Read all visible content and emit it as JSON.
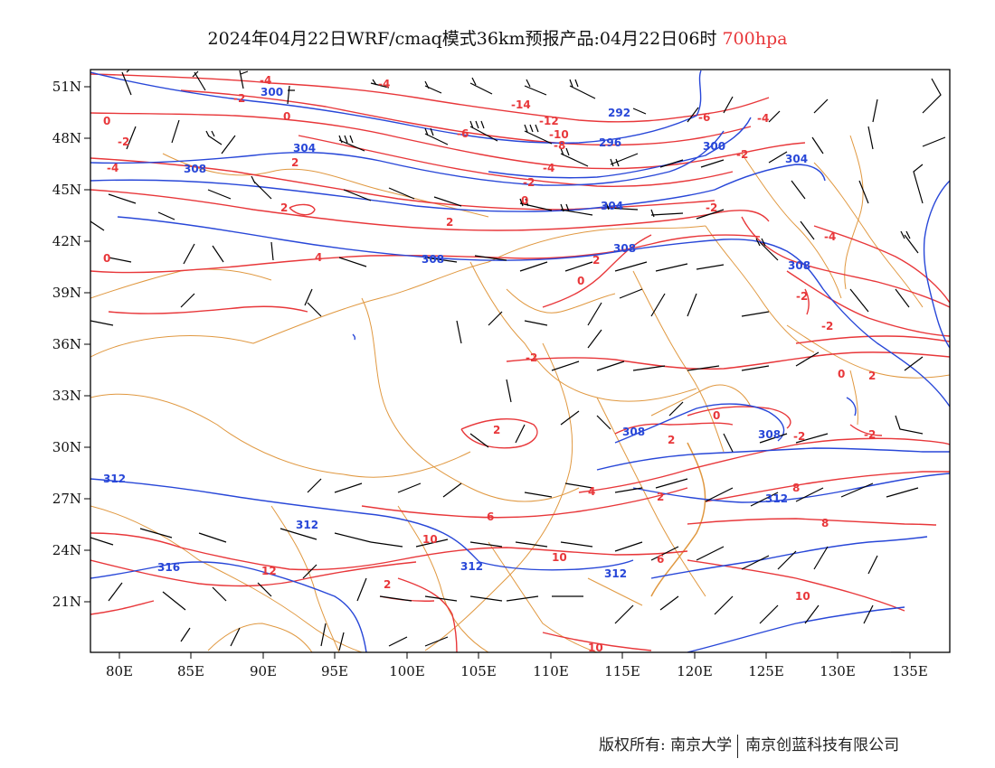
{
  "title": {
    "main": "2024年04月22日WRF/cmaq模式36km预报产品:04月22日06时",
    "level": "700hpa"
  },
  "axes": {
    "lon_labels": [
      "80E",
      "85E",
      "90E",
      "95E",
      "100E",
      "105E",
      "110E",
      "115E",
      "120E",
      "125E",
      "130E",
      "135E"
    ],
    "lat_labels": [
      "21N",
      "24N",
      "27N",
      "30N",
      "33N",
      "36N",
      "39N",
      "42N",
      "45N",
      "48N",
      "51N"
    ]
  },
  "colors": {
    "temperature": "#e8373a",
    "geopotential": "#2847d8",
    "boundary": "#e09840",
    "wind_barb": "#000000"
  },
  "temperature_labels": [
    "-4",
    "-4",
    "-2",
    "-14",
    "-12",
    "-10",
    "-8",
    "-6",
    "-6",
    "-4",
    "-4",
    "-2",
    "0",
    "0",
    "0",
    "-2",
    "2",
    "2",
    "2",
    "-2",
    "-2",
    "-4",
    "-4",
    "-2",
    "0",
    "2",
    "4",
    "0",
    "-2",
    "-2",
    "0",
    "-2",
    "2",
    "2",
    "0",
    "-2",
    "2",
    "4",
    "2",
    "-4",
    "6",
    "8",
    "6",
    "8",
    "10",
    "10",
    "12",
    "10",
    "10",
    "2"
  ],
  "geopotential_labels": [
    "300",
    "292",
    "296",
    "300",
    "304",
    "304",
    "308",
    "304",
    "308",
    "308",
    "308",
    "308",
    "308",
    "312",
    "312",
    "312",
    "316",
    "312",
    "312"
  ],
  "footer": {
    "copyright": "版权所有: 南京大学",
    "company": "南京创蓝科技有限公司"
  }
}
